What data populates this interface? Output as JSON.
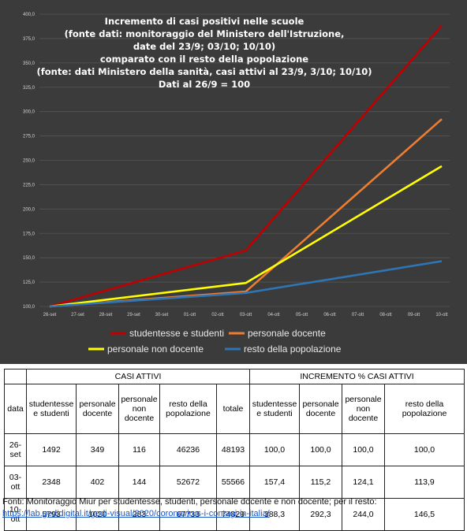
{
  "chart_data": {
    "type": "line",
    "title": [
      "Incremento di casi positivi nelle scuole",
      "(fonte dati: monitoraggio del Ministero dell'Istruzione,",
      "date del 23/9; 03/10; 10/10)",
      "comparato con il resto della popolazione",
      "(fonte: dati Ministero della sanità, casi attivi al 23/9, 3/10; 10/10)",
      "Dati al 26/9 = 100"
    ],
    "x": [
      "26-set",
      "27-set",
      "28-set",
      "29-set",
      "30-set",
      "01-ott",
      "02-ott",
      "03-ott",
      "04-ott",
      "05-ott",
      "06-ott",
      "07-ott",
      "08-ott",
      "09-ott",
      "10-ott"
    ],
    "ylim": [
      100,
      400
    ],
    "yticks": [
      "100,0",
      "125,0",
      "150,0",
      "175,0",
      "200,0",
      "225,0",
      "250,0",
      "275,0",
      "300,0",
      "325,0",
      "350,0",
      "375,0",
      "400,0"
    ],
    "grid": true,
    "legend": "bottom",
    "series": [
      {
        "name": "studentesse e studenti",
        "color": "#c00000",
        "points": [
          [
            0,
            100
          ],
          [
            7,
            157.4
          ],
          [
            14,
            388.3
          ]
        ]
      },
      {
        "name": "personale docente",
        "color": "#ed7d31",
        "points": [
          [
            0,
            100
          ],
          [
            7,
            115.2
          ],
          [
            14,
            292.3
          ]
        ]
      },
      {
        "name": "personale non docente",
        "color": "#ffff00",
        "points": [
          [
            0,
            100
          ],
          [
            7,
            124.1
          ],
          [
            14,
            244.0
          ]
        ]
      },
      {
        "name": "resto della popolazione",
        "color": "#2e75b6",
        "points": [
          [
            0,
            100
          ],
          [
            7,
            113.9
          ],
          [
            14,
            146.5
          ]
        ]
      }
    ]
  },
  "table": {
    "col_data": "data",
    "group_casi": "CASI ATTIVI",
    "group_incr": "INCREMENTO % CASI ATTIVI",
    "headers_casi": [
      "studentesse e studenti",
      "personale docente",
      "personale non docente",
      "resto della popolazione",
      "totale"
    ],
    "headers_incr": [
      "studentesse e studenti",
      "personale docente",
      "personale non docente",
      "resto della popolazione"
    ],
    "rows": [
      {
        "date": "26-set",
        "casi": [
          "1492",
          "349",
          "116",
          "46236",
          "48193"
        ],
        "incr": [
          "100,0",
          "100,0",
          "100,0",
          "100,0"
        ]
      },
      {
        "date": "03-ott",
        "casi": [
          "2348",
          "402",
          "144",
          "52672",
          "55566"
        ],
        "incr": [
          "157,4",
          "115,2",
          "124,1",
          "113,9"
        ]
      },
      {
        "date": "10-ott",
        "casi": [
          "5793",
          "1020",
          "283",
          "67733",
          "74829"
        ],
        "incr": [
          "388,3",
          "292,3",
          "244,0",
          "146,5"
        ]
      }
    ]
  },
  "footer": {
    "text": "Fonti: Monitoraggio Miur per studentesse, studenti, personale docente e non docente; per il resto:",
    "link": "https://lab.gedidigital.it/gedi-visual/2020/coronavirus-i-contagi-in-italia/"
  }
}
